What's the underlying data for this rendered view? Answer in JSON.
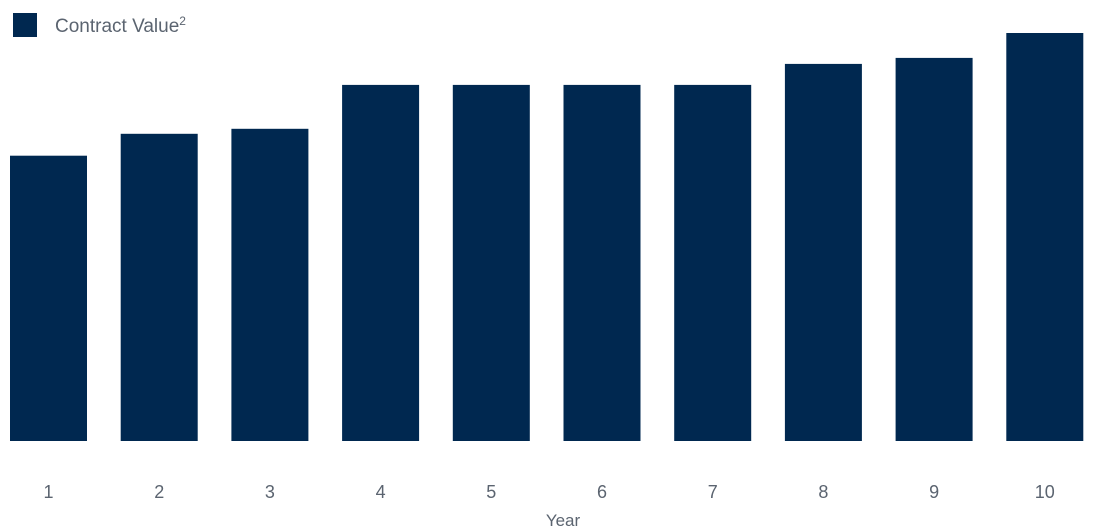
{
  "chart_data": {
    "type": "bar",
    "legend": {
      "label": "Contract Value",
      "superscript": "2",
      "position": "top-left"
    },
    "xlabel": "Year",
    "ylabel": "",
    "categories": [
      "1",
      "2",
      "3",
      "4",
      "5",
      "6",
      "7",
      "8",
      "9",
      "10"
    ],
    "series": [
      {
        "name": "Contract Value",
        "values": [
          286,
          308,
          313,
          357,
          357,
          357,
          357,
          378,
          384,
          409
        ]
      }
    ],
    "ylim": [
      0,
      409
    ],
    "grid": false,
    "color": "#002850"
  }
}
